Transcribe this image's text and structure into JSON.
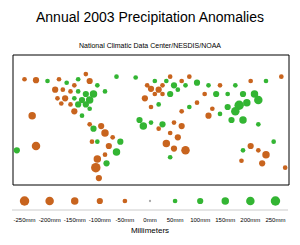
{
  "chart_data": {
    "type": "scatter",
    "title": "Annual 2003 Precipitation Anomalies",
    "subtitle": "National Climatic Data Center/NESDIS/NOAA",
    "xlim": [
      -180,
      180
    ],
    "ylim": [
      -60,
      90
    ],
    "tick_labels": false,
    "points": [
      {
        "x": -150,
        "y": 61,
        "value": -100
      },
      {
        "x": -135,
        "y": 60,
        "value": 50
      },
      {
        "x": -120,
        "y": 62,
        "value": -50
      },
      {
        "x": -110,
        "y": 58,
        "value": 50
      },
      {
        "x": -100,
        "y": 55,
        "value": -50
      },
      {
        "x": -95,
        "y": 62,
        "value": 50
      },
      {
        "x": -80,
        "y": 60,
        "value": -100
      },
      {
        "x": -70,
        "y": 55,
        "value": 50
      },
      {
        "x": -125,
        "y": 50,
        "value": -100
      },
      {
        "x": -115,
        "y": 50,
        "value": -50
      },
      {
        "x": -105,
        "y": 48,
        "value": -50
      },
      {
        "x": -95,
        "y": 48,
        "value": 50
      },
      {
        "x": -85,
        "y": 45,
        "value": 100
      },
      {
        "x": -75,
        "y": 45,
        "value": 150
      },
      {
        "x": -122,
        "y": 40,
        "value": -50
      },
      {
        "x": -112,
        "y": 40,
        "value": -100
      },
      {
        "x": -100,
        "y": 40,
        "value": 50
      },
      {
        "x": -90,
        "y": 38,
        "value": 100
      },
      {
        "x": -80,
        "y": 38,
        "value": 150
      },
      {
        "x": -117,
        "y": 34,
        "value": -50
      },
      {
        "x": -105,
        "y": 33,
        "value": -50
      },
      {
        "x": -95,
        "y": 33,
        "value": 100
      },
      {
        "x": -85,
        "y": 33,
        "value": 100
      },
      {
        "x": -80,
        "y": 28,
        "value": 50
      },
      {
        "x": -100,
        "y": 25,
        "value": -100
      },
      {
        "x": -90,
        "y": 20,
        "value": 50
      },
      {
        "x": -165,
        "y": 62,
        "value": -50
      },
      {
        "x": -60,
        "y": 48,
        "value": 50
      },
      {
        "x": -85,
        "y": 68,
        "value": -50
      },
      {
        "x": -45,
        "y": 65,
        "value": 50
      },
      {
        "x": -80,
        "y": 10,
        "value": -50
      },
      {
        "x": -75,
        "y": 5,
        "value": 100
      },
      {
        "x": -65,
        "y": 8,
        "value": -100
      },
      {
        "x": -60,
        "y": 0,
        "value": -150
      },
      {
        "x": -50,
        "y": -5,
        "value": -50
      },
      {
        "x": -70,
        "y": -10,
        "value": 50
      },
      {
        "x": -40,
        "y": -10,
        "value": 100
      },
      {
        "x": -55,
        "y": -15,
        "value": -100
      },
      {
        "x": -45,
        "y": -22,
        "value": 150
      },
      {
        "x": -60,
        "y": -25,
        "value": -50
      },
      {
        "x": -70,
        "y": -30,
        "value": -150
      },
      {
        "x": -58,
        "y": -35,
        "value": 100
      },
      {
        "x": -72,
        "y": -40,
        "value": -250
      },
      {
        "x": -68,
        "y": -52,
        "value": -100
      },
      {
        "x": -77,
        "y": -10,
        "value": -50
      },
      {
        "x": -20,
        "y": 64,
        "value": 50
      },
      {
        "x": -5,
        "y": 55,
        "value": -50
      },
      {
        "x": 0,
        "y": 51,
        "value": -100
      },
      {
        "x": 5,
        "y": 45,
        "value": -50
      },
      {
        "x": 10,
        "y": 50,
        "value": -100
      },
      {
        "x": 15,
        "y": 55,
        "value": -50
      },
      {
        "x": 20,
        "y": 60,
        "value": 50
      },
      {
        "x": 25,
        "y": 65,
        "value": -50
      },
      {
        "x": 30,
        "y": 55,
        "value": 100
      },
      {
        "x": 15,
        "y": 45,
        "value": -50
      },
      {
        "x": 25,
        "y": 45,
        "value": 100
      },
      {
        "x": 35,
        "y": 50,
        "value": 50
      },
      {
        "x": 40,
        "y": 60,
        "value": -50
      },
      {
        "x": -8,
        "y": 40,
        "value": -100
      },
      {
        "x": 5,
        "y": 60,
        "value": 50
      },
      {
        "x": 45,
        "y": 55,
        "value": 50
      },
      {
        "x": 60,
        "y": 58,
        "value": 100
      },
      {
        "x": 50,
        "y": 65,
        "value": -50
      },
      {
        "x": 75,
        "y": 55,
        "value": 50
      },
      {
        "x": 90,
        "y": 55,
        "value": -50
      },
      {
        "x": 110,
        "y": 55,
        "value": 50
      },
      {
        "x": 130,
        "y": 60,
        "value": -50
      },
      {
        "x": 150,
        "y": 60,
        "value": 50
      },
      {
        "x": 70,
        "y": 45,
        "value": -50
      },
      {
        "x": 85,
        "y": 45,
        "value": 100
      },
      {
        "x": 100,
        "y": 45,
        "value": 50
      },
      {
        "x": 120,
        "y": 45,
        "value": 100
      },
      {
        "x": 135,
        "y": 45,
        "value": 150
      },
      {
        "x": 140,
        "y": 38,
        "value": 200
      },
      {
        "x": 125,
        "y": 35,
        "value": 150
      },
      {
        "x": 115,
        "y": 32,
        "value": 250
      },
      {
        "x": 110,
        "y": 25,
        "value": 200
      },
      {
        "x": 100,
        "y": 30,
        "value": 100
      },
      {
        "x": 80,
        "y": 28,
        "value": -50
      },
      {
        "x": 75,
        "y": 20,
        "value": -100
      },
      {
        "x": 90,
        "y": 22,
        "value": 50
      },
      {
        "x": 105,
        "y": 15,
        "value": 100
      },
      {
        "x": 120,
        "y": 15,
        "value": 150
      },
      {
        "x": 60,
        "y": 35,
        "value": -50
      },
      {
        "x": 50,
        "y": 30,
        "value": 50
      },
      {
        "x": 40,
        "y": 25,
        "value": -50
      },
      {
        "x": 170,
        "y": 65,
        "value": -50
      },
      {
        "x": -15,
        "y": 15,
        "value": 100
      },
      {
        "x": 0,
        "y": 12,
        "value": 50
      },
      {
        "x": 15,
        "y": 10,
        "value": 100
      },
      {
        "x": 30,
        "y": 12,
        "value": -50
      },
      {
        "x": 40,
        "y": 8,
        "value": -100
      },
      {
        "x": -10,
        "y": 8,
        "value": 150
      },
      {
        "x": 10,
        "y": 5,
        "value": -50
      },
      {
        "x": 25,
        "y": 0,
        "value": -50
      },
      {
        "x": 35,
        "y": -5,
        "value": -100
      },
      {
        "x": 20,
        "y": -12,
        "value": -150
      },
      {
        "x": 30,
        "y": -18,
        "value": -100
      },
      {
        "x": 25,
        "y": -28,
        "value": 50
      },
      {
        "x": 45,
        "y": -20,
        "value": -200
      },
      {
        "x": 0,
        "y": 30,
        "value": -50
      },
      {
        "x": 10,
        "y": 33,
        "value": 50
      },
      {
        "x": 120,
        "y": -20,
        "value": 50
      },
      {
        "x": 130,
        "y": -15,
        "value": -100
      },
      {
        "x": 140,
        "y": -20,
        "value": -50
      },
      {
        "x": 150,
        "y": -25,
        "value": -150
      },
      {
        "x": 145,
        "y": -35,
        "value": -100
      },
      {
        "x": 118,
        "y": -32,
        "value": -50
      },
      {
        "x": 175,
        "y": -40,
        "value": -50
      },
      {
        "x": -150,
        "y": -15,
        "value": -200
      },
      {
        "x": -175,
        "y": -20,
        "value": 100
      },
      {
        "x": 160,
        "y": -10,
        "value": 50
      },
      {
        "x": -155,
        "y": 20,
        "value": -150
      },
      {
        "x": 140,
        "y": 10,
        "value": 50
      }
    ],
    "scale": {
      "title": "Millimeters",
      "xlim": [
        -275,
        275
      ],
      "ticks": [
        {
          "value": -250,
          "label": "-250mm"
        },
        {
          "value": -200,
          "label": "-200mm"
        },
        {
          "value": -150,
          "label": "-150mm"
        },
        {
          "value": -100,
          "label": "-100mm"
        },
        {
          "value": -50,
          "label": "-50mm"
        },
        {
          "value": 0,
          "label": "0mm"
        },
        {
          "value": 50,
          "label": "50mm"
        },
        {
          "value": 100,
          "label": "100mm"
        },
        {
          "value": 150,
          "label": "150mm"
        },
        {
          "value": 200,
          "label": "200mm"
        },
        {
          "value": 250,
          "label": "250mm"
        }
      ],
      "colors": [
        "#c8641e",
        "#c8641e",
        "#c8641e",
        "#c8641e",
        "#c8641e",
        "#aaaaaa",
        "#33b533",
        "#33b533",
        "#33b533",
        "#33b533",
        "#33b533"
      ]
    }
  }
}
